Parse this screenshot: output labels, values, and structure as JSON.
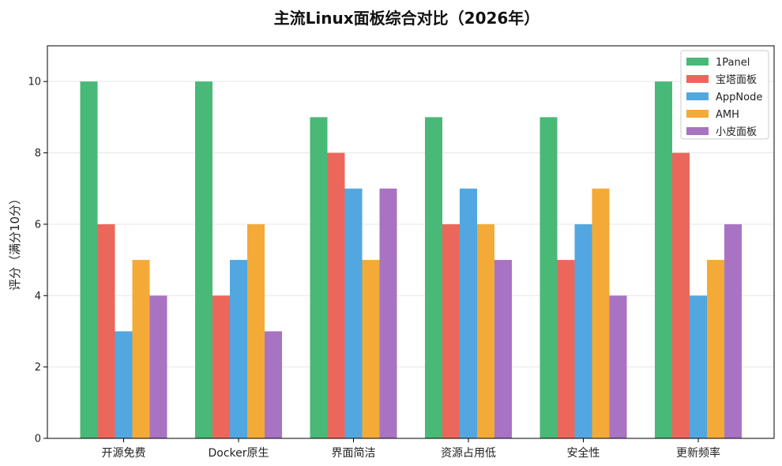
{
  "chart_data": {
    "type": "bar",
    "title": "主流Linux面板综合对比（2026年）",
    "ylabel": "评分（满分10分）",
    "xlabel": "",
    "ylim": [
      0,
      11
    ],
    "yticks": [
      0,
      2,
      4,
      6,
      8,
      10
    ],
    "grid": true,
    "legend_position": "top-right",
    "categories": [
      "开源免费",
      "Docker原生",
      "界面简洁",
      "资源占用低",
      "安全性",
      "更新频率"
    ],
    "series": [
      {
        "name": "1Panel",
        "color": "#48b976",
        "values": [
          10,
          10,
          9,
          9,
          9,
          10
        ]
      },
      {
        "name": "宝塔面板",
        "color": "#ec675b",
        "values": [
          6,
          4,
          8,
          6,
          5,
          8
        ]
      },
      {
        "name": "AppNode",
        "color": "#52a7e0",
        "values": [
          3,
          5,
          7,
          7,
          6,
          4
        ]
      },
      {
        "name": "AMH",
        "color": "#f3aa37",
        "values": [
          5,
          6,
          5,
          6,
          7,
          5
        ]
      },
      {
        "name": "小皮面板",
        "color": "#a873c3",
        "values": [
          4,
          3,
          7,
          5,
          4,
          6
        ]
      }
    ]
  }
}
